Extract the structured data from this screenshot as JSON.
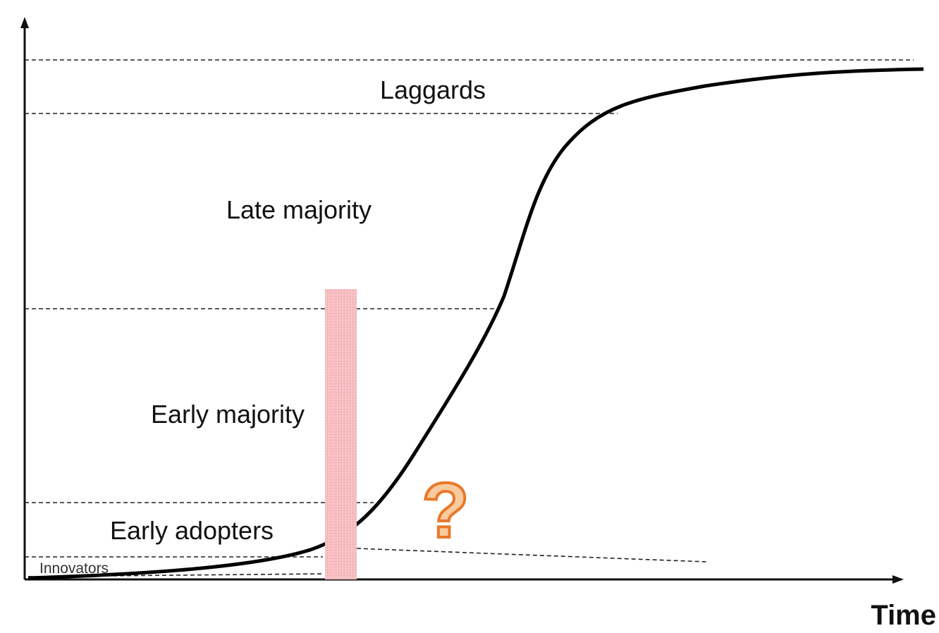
{
  "segments": [
    "Laggards",
    "Late majority",
    "Early majority",
    "Early adopters",
    "Innovators"
  ],
  "x_axis_label": "Time",
  "annotation": "?"
}
